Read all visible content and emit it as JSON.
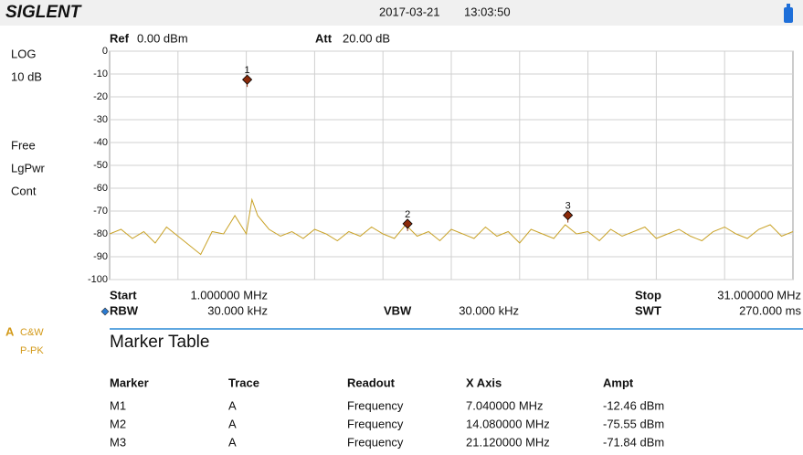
{
  "header": {
    "brand": "SIGLENT",
    "date": "2017-03-21",
    "time": "13:03:50"
  },
  "side": {
    "scale": "LOG",
    "div": "10 dB",
    "free": "Free",
    "detector": "LgPwr",
    "sweep": "Cont",
    "trace": "A",
    "trace_mode": "C&W",
    "trace_det": "P-PK"
  },
  "settings": {
    "ref_label": "Ref",
    "ref": "0.00 dBm",
    "att_label": "Att",
    "att": "20.00 dB",
    "start_label": "Start",
    "start": "1.000000 MHz",
    "stop_label": "Stop",
    "stop": "31.000000 MHz",
    "rbw_label": "RBW",
    "rbw": "30.000 kHz",
    "vbw_label": "VBW",
    "vbw": "30.000 kHz",
    "swt_label": "SWT",
    "swt": "270.000 ms"
  },
  "chart_data": {
    "type": "line",
    "xlim": [
      1,
      31
    ],
    "ylim": [
      -100,
      0
    ],
    "yticks": [
      0,
      -10,
      -20,
      -30,
      -40,
      -50,
      -60,
      -70,
      -80,
      -90,
      -100
    ],
    "grid": true,
    "trace": {
      "color": "#c9a227",
      "x": [
        1,
        1.5,
        2,
        2.5,
        3,
        3.5,
        4,
        4.5,
        5,
        5.5,
        6,
        6.5,
        7,
        7.25,
        7.5,
        8,
        8.5,
        9,
        9.5,
        10,
        10.5,
        11,
        11.5,
        12,
        12.5,
        13,
        13.5,
        14,
        14.5,
        15,
        15.5,
        16,
        16.5,
        17,
        17.5,
        18,
        18.5,
        19,
        19.5,
        20,
        20.5,
        21,
        21.5,
        22,
        22.5,
        23,
        23.5,
        24,
        24.5,
        25,
        25.5,
        26,
        26.5,
        27,
        27.5,
        28,
        28.5,
        29,
        29.5,
        30,
        30.5,
        31
      ],
      "values": [
        -80,
        -78,
        -82,
        -79,
        -84,
        -77,
        -81,
        -85,
        -89,
        -79,
        -80,
        -72,
        -80,
        -65,
        -72,
        -78,
        -81,
        -79,
        -82,
        -78,
        -80,
        -83,
        -79,
        -81,
        -77,
        -80,
        -82,
        -76,
        -81,
        -79,
        -83,
        -78,
        -80,
        -82,
        -77,
        -81,
        -79,
        -84,
        -78,
        -80,
        -82,
        -76,
        -80,
        -79,
        -83,
        -78,
        -81,
        -79,
        -77,
        -82,
        -80,
        -78,
        -81,
        -83,
        -79,
        -77,
        -80,
        -82,
        -78,
        -76,
        -81,
        -79
      ]
    },
    "markers": {
      "color": "#8b2a0a",
      "labels": [
        "1",
        "2",
        "3"
      ],
      "x": [
        7.04,
        14.08,
        21.12
      ],
      "values": [
        -12.46,
        -75.55,
        -71.84
      ]
    }
  },
  "marker_table": {
    "title": "Marker Table",
    "columns": [
      "Marker",
      "Trace",
      "Readout",
      "X Axis",
      "Ampt"
    ],
    "rows": [
      [
        "M1",
        "A",
        "Frequency",
        "7.040000 MHz",
        "-12.46 dBm"
      ],
      [
        "M2",
        "A",
        "Frequency",
        "14.080000 MHz",
        "-75.55 dBm"
      ],
      [
        "M3",
        "A",
        "Frequency",
        "21.120000 MHz",
        "-71.84 dBm"
      ]
    ]
  }
}
